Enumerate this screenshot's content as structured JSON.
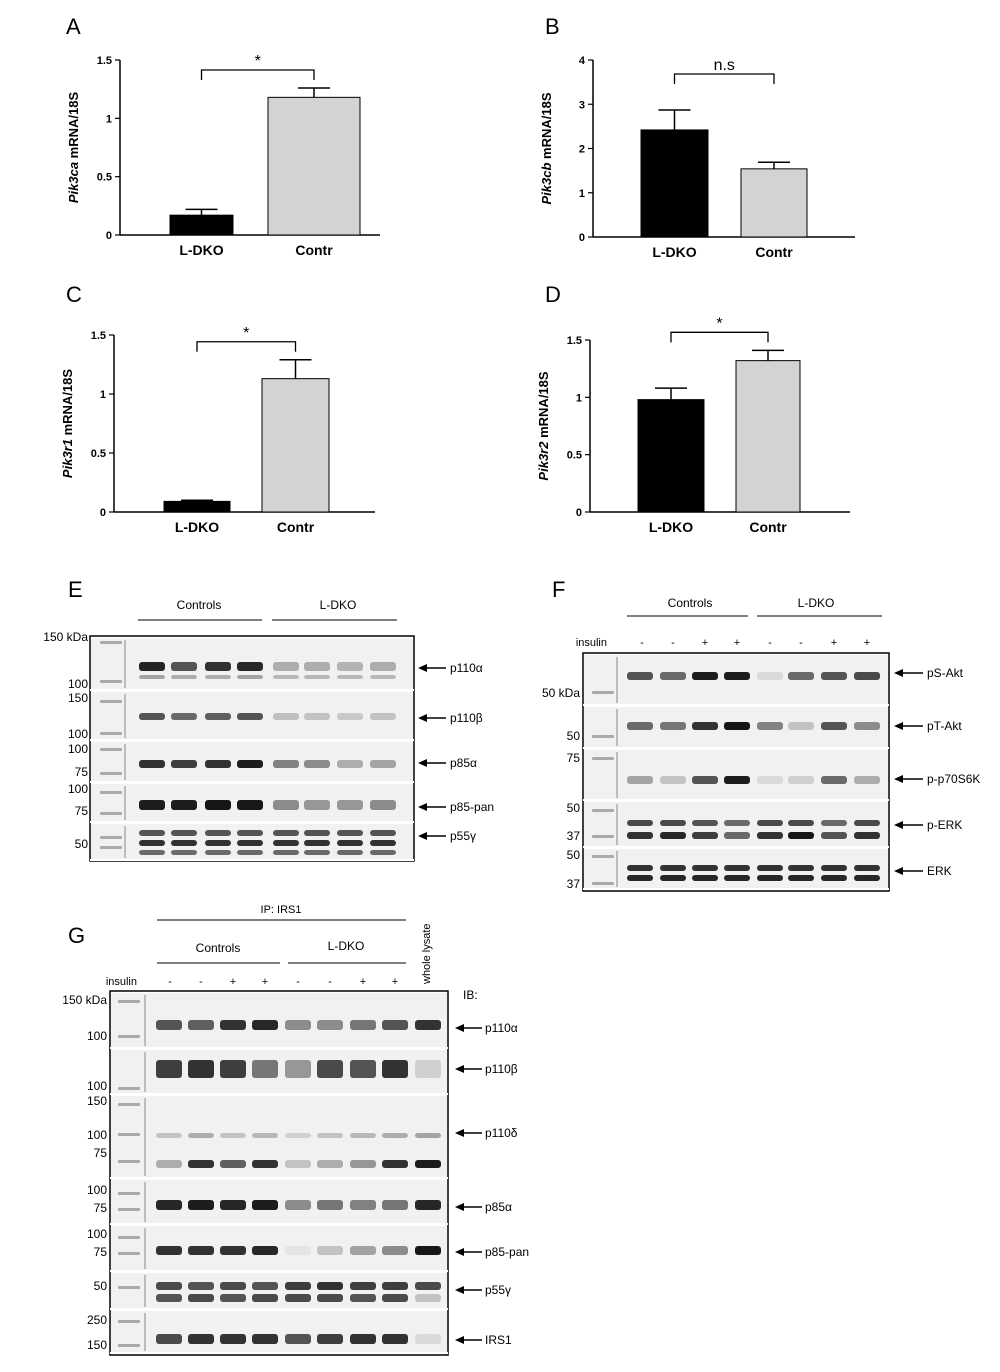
{
  "charts_meta": {
    "bar_fill_ldko": "#000000",
    "bar_fill_contr": "#d3d3d3"
  },
  "chart_data": [
    {
      "panel": "A",
      "type": "bar",
      "categories": [
        "L-DKO",
        "Contr"
      ],
      "values": [
        0.17,
        1.18
      ],
      "errors": [
        0.05,
        0.08
      ],
      "ylabel_gene": "Pik3ca",
      "ylabel_rest": " mRNA/18S",
      "ylim": [
        0,
        1.5
      ],
      "yticks": [
        "0",
        "0.5",
        "1",
        "1.5"
      ],
      "significance": "*"
    },
    {
      "panel": "B",
      "type": "bar",
      "categories": [
        "L-DKO",
        "Contr"
      ],
      "values": [
        2.42,
        1.54
      ],
      "errors": [
        0.45,
        0.15
      ],
      "ylabel_gene": "Pik3cb",
      "ylabel_rest": " mRNA/18S",
      "ylim": [
        0,
        4
      ],
      "yticks": [
        "0",
        "1",
        "2",
        "3",
        "4"
      ],
      "significance": "n.s"
    },
    {
      "panel": "C",
      "type": "bar",
      "categories": [
        "L-DKO",
        "Contr"
      ],
      "values": [
        0.09,
        1.13
      ],
      "errors": [
        0.01,
        0.16
      ],
      "ylabel_gene": "Pik3r1",
      "ylabel_rest": " mRNA/18S",
      "ylim": [
        0,
        1.5
      ],
      "yticks": [
        "0",
        "0.5",
        "1",
        "1.5"
      ],
      "significance": "*"
    },
    {
      "panel": "D",
      "type": "bar",
      "categories": [
        "L-DKO",
        "Contr"
      ],
      "values": [
        0.98,
        1.32
      ],
      "errors": [
        0.1,
        0.09
      ],
      "ylabel_gene": "Pik3r2",
      "ylabel_rest": " mRNA/18S",
      "ylim": [
        0,
        1.5
      ],
      "yticks": [
        "0",
        "0.5",
        "1",
        "1.5"
      ],
      "significance": "*"
    }
  ],
  "blots": {
    "E": {
      "letter": "E",
      "group_left": "Controls",
      "group_right": "L-DKO",
      "mw_labels": [
        "150 kDa",
        "100",
        "150",
        "100",
        "100",
        "75",
        "100",
        "75",
        "50"
      ],
      "proteins": [
        "p110α",
        "p110β",
        "p85α",
        "p85-pan",
        "p55γ"
      ]
    },
    "F": {
      "letter": "F",
      "group_left": "Controls",
      "group_right": "L-DKO",
      "treatment_label": "insulin",
      "treatment": [
        "-",
        "-",
        "+",
        "+",
        "-",
        "-",
        "+",
        "+"
      ],
      "mw_labels": [
        "50 kDa",
        "50",
        "75",
        "50",
        "37",
        "50",
        "37"
      ],
      "proteins": [
        "pS-Akt",
        "pT-Akt",
        "p-p70S6K",
        "p-ERK",
        "ERK"
      ]
    },
    "G": {
      "letter": "G",
      "ip_label": "IP: IRS1",
      "group_left": "Controls",
      "group_right": "L-DKO",
      "treatment_label": "insulin",
      "treatment": [
        "-",
        "-",
        "+",
        "+",
        "-",
        "-",
        "+",
        "+"
      ],
      "whole_lysate": "whole lysate",
      "ib_label": "IB:",
      "mw_labels": [
        "150 kDa",
        "100",
        "100",
        "150",
        "100",
        "75",
        "100",
        "75",
        "100",
        "75",
        "50",
        "250",
        "150"
      ],
      "proteins": [
        "p110α",
        "p110β",
        "p110δ",
        "p85α",
        "p85-pan",
        "p55γ",
        "IRS1"
      ]
    }
  }
}
